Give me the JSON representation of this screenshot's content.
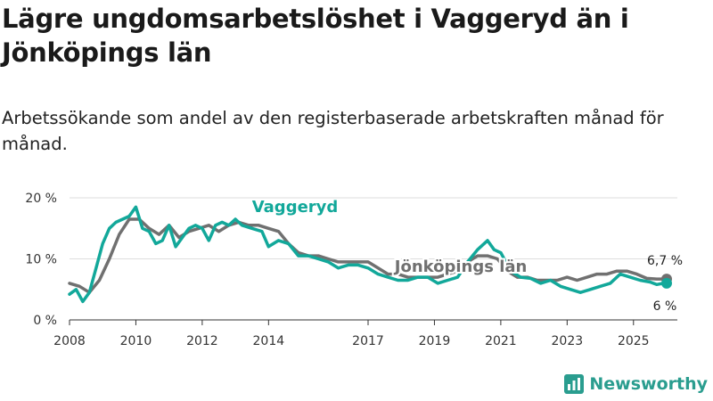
{
  "title": "Lägre ungdomsarbetslöshet i Vaggeryd än i Jönköpings län",
  "subtitle": "Arbetssökande som andel av den registerbaserade arbetskraften månad för månad.",
  "brand": "Newsworthy",
  "colors": {
    "vaggeryd": "#12a89a",
    "jonkoping": "#707070",
    "grid": "#dddddd",
    "axis": "#333333",
    "brand": "#2a9d8f"
  },
  "chart_data": {
    "type": "line",
    "title": "Lägre ungdomsarbetslöshet i Vaggeryd än i Jönköpings län",
    "xlabel": "",
    "ylabel": "",
    "xlim": [
      2008.0,
      2026.0
    ],
    "ylim": [
      0,
      20
    ],
    "y_ticks": [
      0,
      10,
      20
    ],
    "y_tick_labels": [
      "0 %",
      "10 %",
      "20 %"
    ],
    "x_ticks": [
      2008,
      2010,
      2012,
      2014,
      2017,
      2019,
      2021,
      2023,
      2025
    ],
    "x_tick_labels": [
      "2008",
      "2010",
      "2012",
      "2014",
      "2017",
      "2019",
      "2021",
      "2023",
      "2025"
    ],
    "grid": true,
    "series": [
      {
        "name": "Vaggeryd",
        "label": "Vaggeryd",
        "end_label": "6 %",
        "x": [
          2008.0,
          2008.2,
          2008.4,
          2008.6,
          2008.8,
          2009.0,
          2009.2,
          2009.4,
          2009.6,
          2009.8,
          2010.0,
          2010.2,
          2010.4,
          2010.6,
          2010.8,
          2011.0,
          2011.2,
          2011.4,
          2011.6,
          2011.8,
          2012.0,
          2012.2,
          2012.4,
          2012.6,
          2012.8,
          2013.0,
          2013.2,
          2013.5,
          2013.8,
          2014.0,
          2014.3,
          2014.6,
          2014.9,
          2015.2,
          2015.5,
          2015.8,
          2016.1,
          2016.4,
          2016.7,
          2017.0,
          2017.3,
          2017.6,
          2017.9,
          2018.2,
          2018.5,
          2018.8,
          2019.1,
          2019.4,
          2019.7,
          2020.0,
          2020.3,
          2020.6,
          2020.8,
          2021.0,
          2021.3,
          2021.6,
          2021.9,
          2022.2,
          2022.5,
          2022.8,
          2023.1,
          2023.4,
          2023.7,
          2024.0,
          2024.3,
          2024.6,
          2024.9,
          2025.2,
          2025.5,
          2025.7,
          2025.9,
          2026.0
        ],
        "values": [
          4.2,
          5.0,
          3.0,
          4.5,
          8.5,
          12.5,
          15.0,
          16.0,
          16.5,
          17.0,
          18.5,
          15.0,
          14.5,
          12.5,
          13.0,
          15.5,
          12.0,
          13.5,
          15.0,
          15.5,
          15.0,
          13.0,
          15.5,
          16.0,
          15.5,
          16.5,
          15.5,
          15.0,
          14.5,
          12.0,
          13.0,
          12.5,
          10.5,
          10.5,
          10.0,
          9.5,
          8.5,
          9.0,
          9.0,
          8.5,
          7.5,
          7.0,
          6.5,
          6.5,
          7.0,
          7.0,
          6.0,
          6.5,
          7.0,
          9.5,
          11.5,
          13.0,
          11.5,
          11.0,
          8.0,
          7.0,
          6.8,
          6.0,
          6.5,
          5.5,
          5.0,
          4.5,
          5.0,
          5.5,
          6.0,
          7.5,
          7.0,
          6.5,
          6.2,
          5.8,
          6.0,
          6.0
        ]
      },
      {
        "name": "Jönköpings län",
        "label": "Jönköpings län",
        "end_label": "6,7 %",
        "x": [
          2008.0,
          2008.3,
          2008.6,
          2008.9,
          2009.2,
          2009.5,
          2009.8,
          2010.1,
          2010.4,
          2010.7,
          2011.0,
          2011.3,
          2011.6,
          2011.9,
          2012.2,
          2012.5,
          2012.8,
          2013.1,
          2013.4,
          2013.7,
          2014.0,
          2014.3,
          2014.6,
          2014.9,
          2015.2,
          2015.5,
          2015.8,
          2016.1,
          2016.4,
          2016.7,
          2017.0,
          2017.3,
          2017.6,
          2017.9,
          2018.2,
          2018.5,
          2018.8,
          2019.1,
          2019.4,
          2019.7,
          2020.0,
          2020.3,
          2020.6,
          2020.9,
          2021.2,
          2021.5,
          2021.8,
          2022.1,
          2022.4,
          2022.7,
          2023.0,
          2023.3,
          2023.6,
          2023.9,
          2024.2,
          2024.5,
          2024.8,
          2025.1,
          2025.4,
          2025.7,
          2026.0
        ],
        "values": [
          6.0,
          5.5,
          4.5,
          6.5,
          10.0,
          14.0,
          16.5,
          16.5,
          15.0,
          14.0,
          15.5,
          13.5,
          14.5,
          15.0,
          15.5,
          14.5,
          15.5,
          16.0,
          15.5,
          15.5,
          15.0,
          14.5,
          12.5,
          11.0,
          10.5,
          10.5,
          10.0,
          9.5,
          9.5,
          9.5,
          9.5,
          8.5,
          7.5,
          7.5,
          7.0,
          7.0,
          7.0,
          7.0,
          7.5,
          8.0,
          9.5,
          10.5,
          10.5,
          10.0,
          8.0,
          7.0,
          7.0,
          6.5,
          6.5,
          6.5,
          7.0,
          6.5,
          7.0,
          7.5,
          7.5,
          8.0,
          8.0,
          7.5,
          6.8,
          6.7,
          6.7
        ]
      }
    ]
  }
}
